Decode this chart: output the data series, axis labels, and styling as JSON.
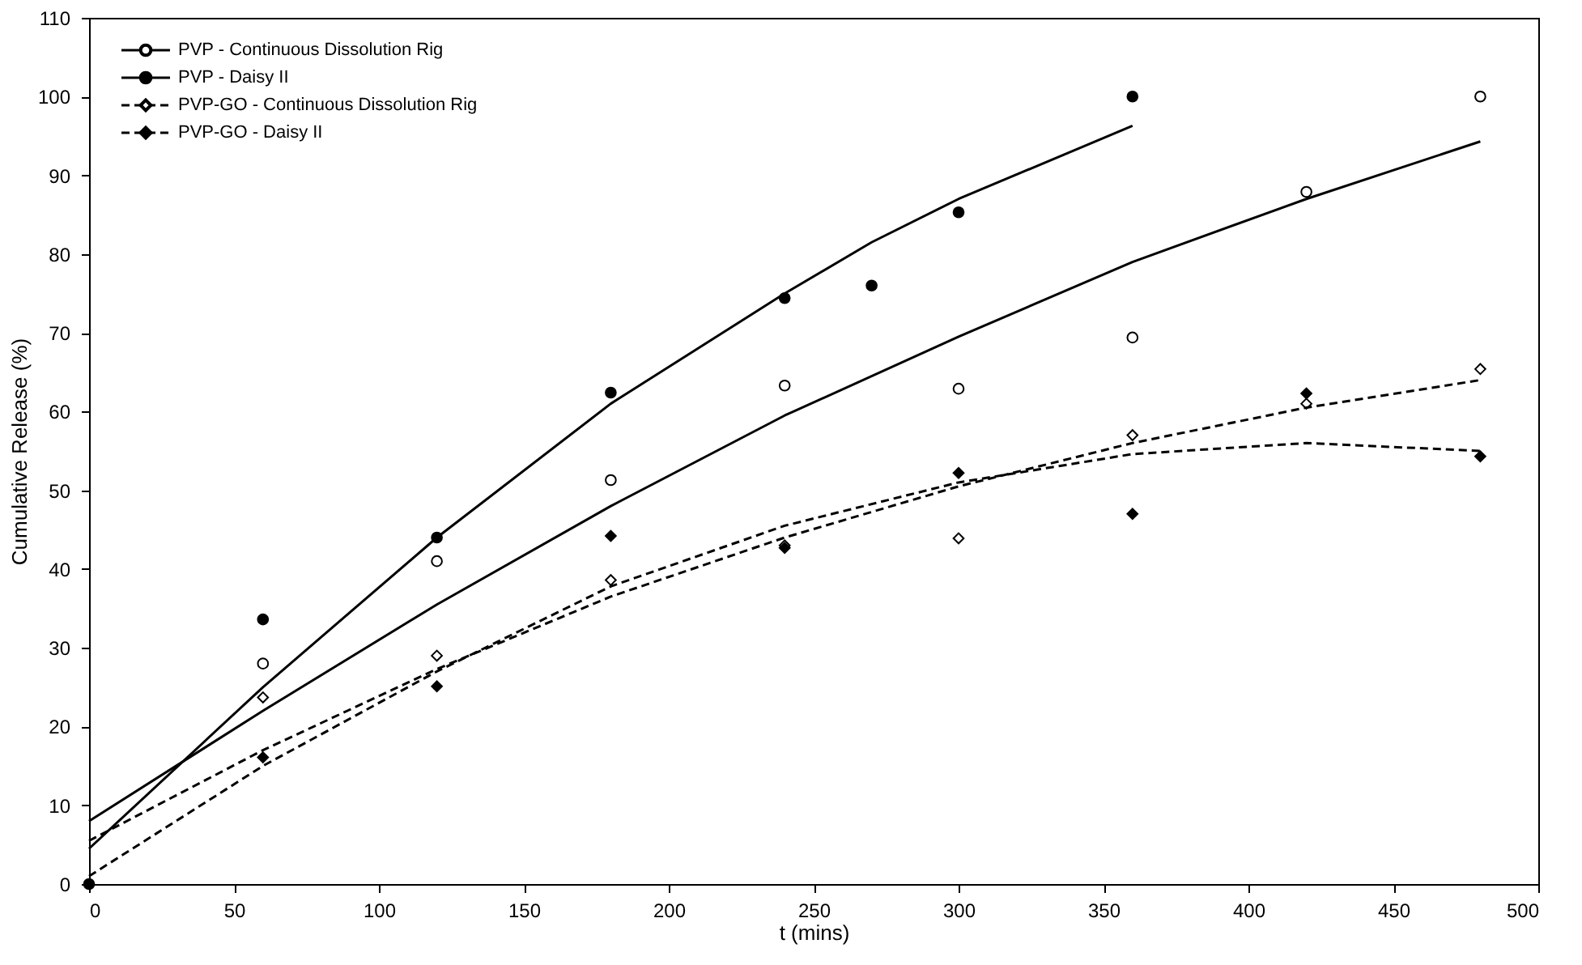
{
  "chart_data": {
    "type": "scatter",
    "xlabel": "t (mins)",
    "ylabel": "Cumulative Release (%)",
    "xlim": [
      0,
      500
    ],
    "xticks": [
      0,
      50,
      100,
      150,
      200,
      250,
      300,
      350,
      400,
      450,
      500
    ],
    "ylim": [
      0,
      110
    ],
    "yticks": [
      0,
      10,
      20,
      30,
      40,
      50,
      60,
      70,
      80,
      90,
      100,
      110
    ],
    "grid": false,
    "legend": "top left",
    "series": [
      {
        "name": "PVP - Continuous Dissolution Rig",
        "color": "#ffffff",
        "marker": "circle",
        "line_style": "solid",
        "x": [
          60,
          120,
          180,
          240,
          300,
          360,
          420,
          480
        ],
        "values": [
          28,
          41,
          51.3,
          63.3,
          62.9,
          69.4,
          87.9,
          100
        ]
      },
      {
        "name": "PVP - Daisy II",
        "color": "#000000",
        "marker": "circle",
        "line_style": "solid",
        "x": [
          0,
          60,
          120,
          180,
          240,
          270,
          300,
          360
        ],
        "values": [
          0,
          33.6,
          44,
          62.4,
          74.4,
          76,
          85.3,
          100
        ]
      },
      {
        "name": "PVP-GO - Continuous Dissolution Rig",
        "color": "#ffffff",
        "marker": "diamond",
        "line_style": "dashed",
        "x": [
          60,
          120,
          180,
          240,
          300,
          360,
          420,
          480
        ],
        "values": [
          23.7,
          29,
          38.6,
          43,
          43.9,
          57,
          61,
          65.4
        ]
      },
      {
        "name": "PVP-GO - Daisy II",
        "color": "#000000",
        "marker": "diamond",
        "line_style": "dashed",
        "x": [
          60,
          120,
          180,
          240,
          300,
          360,
          420,
          480
        ],
        "values": [
          16.1,
          25.1,
          44.2,
          42.7,
          52.2,
          47,
          62.3,
          54.3
        ]
      },
      {
        "type": "line",
        "color": "#000000",
        "line_style": "solid",
        "x": [
          0,
          60,
          120,
          180,
          240,
          300,
          360,
          420,
          480
        ],
        "values": [
          8,
          22,
          35.5,
          48,
          59.5,
          69.5,
          79,
          87,
          94.3
        ]
      },
      {
        "type": "line",
        "color": "#000000",
        "line_style": "solid",
        "x": [
          0,
          60,
          120,
          180,
          240,
          270,
          300,
          360
        ],
        "values": [
          4.5,
          25,
          44,
          61,
          75,
          81.5,
          87,
          96.3
        ]
      },
      {
        "type": "line",
        "color": "#000000",
        "line_style": "dashed",
        "x": [
          0,
          60,
          120,
          180,
          240,
          300,
          360,
          420,
          480
        ],
        "values": [
          5.5,
          17,
          27.3,
          36.5,
          44,
          50.5,
          56,
          60.5,
          64
        ]
      },
      {
        "type": "line",
        "color": "#000000",
        "line_style": "dashed",
        "x": [
          0,
          60,
          120,
          180,
          240,
          300,
          360,
          420,
          480
        ],
        "values": [
          1,
          15,
          27,
          37.8,
          45.5,
          51,
          54.6,
          56,
          55
        ]
      }
    ]
  }
}
